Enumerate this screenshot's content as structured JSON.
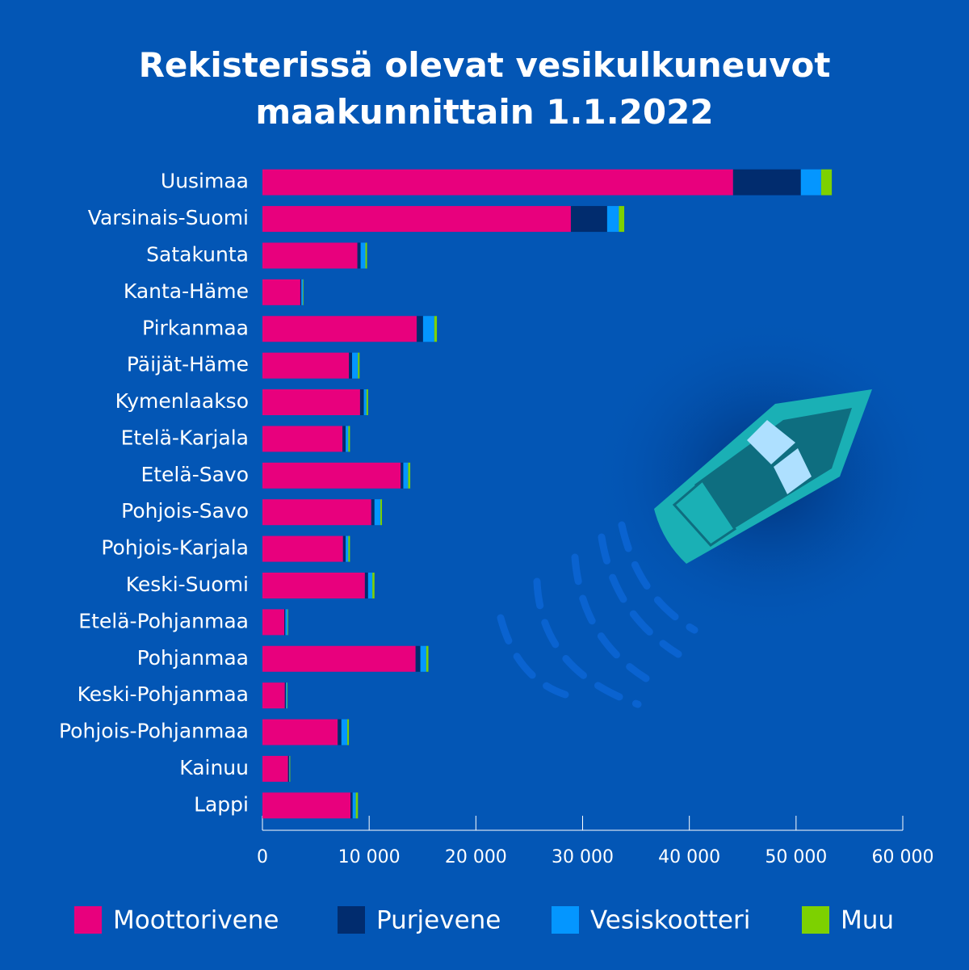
{
  "chart_data": {
    "type": "stacked-bar-horizontal",
    "title": "Rekisterissä olevat vesikulkuneuvot maakunnittain 1.1.2022",
    "categories": [
      "Uusimaa",
      "Varsinais-Suomi",
      "Satakunta",
      "Kanta-Häme",
      "Pirkanmaa",
      "Päijät-Häme",
      "Kymenlaakso",
      "Etelä-Karjala",
      "Etelä-Savo",
      "Pohjois-Savo",
      "Pohjois-Karjala",
      "Keski-Suomi",
      "Etelä-Pohjanmaa",
      "Pohjanmaa",
      "Keski-Pohjanmaa",
      "Pohjois-Pohjanmaa",
      "Kainuu",
      "Lappi"
    ],
    "series": [
      {
        "name": "Moottorivene",
        "color": "#e8007d",
        "values": [
          44100,
          28900,
          8900,
          3550,
          14450,
          8100,
          9150,
          7500,
          12950,
          10200,
          7550,
          9600,
          2050,
          14350,
          2100,
          7050,
          2400,
          8250
        ]
      },
      {
        "name": "Purjevene",
        "color": "#012c6e",
        "values": [
          6350,
          3400,
          300,
          100,
          600,
          300,
          350,
          300,
          250,
          300,
          250,
          300,
          100,
          450,
          100,
          350,
          100,
          200
        ]
      },
      {
        "name": "Vesiskootteri",
        "color": "#0496ff",
        "values": [
          1900,
          1100,
          450,
          150,
          1050,
          550,
          250,
          250,
          450,
          550,
          250,
          400,
          200,
          550,
          100,
          550,
          50,
          300
        ]
      },
      {
        "name": "Muu",
        "color": "#7dd100",
        "values": [
          1000,
          500,
          150,
          50,
          250,
          150,
          150,
          150,
          200,
          150,
          150,
          200,
          50,
          200,
          50,
          150,
          50,
          200
        ]
      }
    ],
    "xlim": [
      0,
      60000
    ],
    "xticks": [
      0,
      {
        "value": 10000,
        "label": "10 000"
      },
      {
        "value": 20000,
        "label": "20 000"
      },
      {
        "value": 30000,
        "label": "30 000"
      },
      {
        "value": 40000,
        "label": "40 000"
      },
      {
        "value": 50000,
        "label": "50 000"
      },
      {
        "value": 60000,
        "label": "60 000"
      }
    ],
    "grid": false
  }
}
